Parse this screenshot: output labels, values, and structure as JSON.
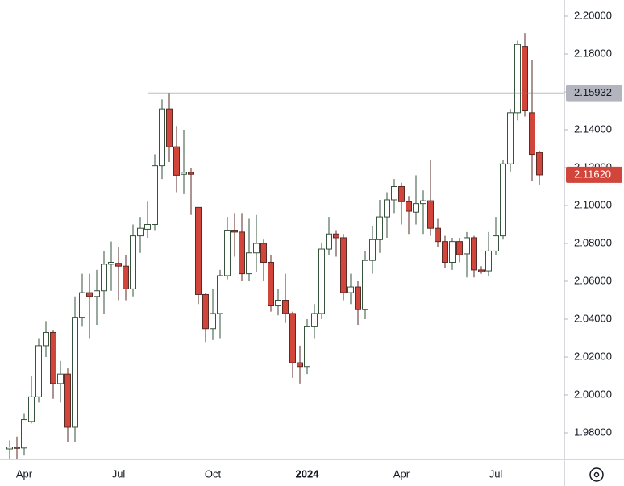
{
  "chart_data": {
    "type": "candlestick",
    "categories": [
      null,
      null,
      "Apr",
      null,
      null,
      null,
      null,
      null,
      null,
      null,
      null,
      null,
      null,
      null,
      null,
      "Jul",
      null,
      null,
      null,
      null,
      null,
      null,
      null,
      null,
      null,
      null,
      null,
      null,
      "Oct",
      null,
      null,
      null,
      null,
      null,
      null,
      null,
      null,
      null,
      null,
      null,
      null,
      "2024",
      null,
      null,
      null,
      null,
      null,
      null,
      null,
      null,
      null,
      null,
      null,
      null,
      "Apr",
      null,
      null,
      null,
      null,
      null,
      null,
      null,
      null,
      null,
      null,
      null,
      null,
      "Jul",
      null,
      null,
      null,
      null,
      null,
      null
    ],
    "open": [
      1.9715,
      1.9725,
      1.972,
      1.986,
      1.999,
      2.026,
      2.033,
      2.006,
      2.011,
      1.983,
      2.041,
      2.054,
      2.052,
      2.055,
      2.069,
      2.0695,
      2.068,
      2.056,
      2.084,
      2.0875,
      2.09,
      2.121,
      2.151,
      2.131,
      2.1165,
      2.1175,
      2.099,
      2.053,
      2.035,
      2.043,
      2.063,
      2.087,
      2.086,
      2.064,
      2.075,
      2.08,
      2.07,
      2.047,
      2.05,
      2.043,
      2.017,
      2.015,
      2.036,
      2.043,
      2.077,
      2.085,
      2.083,
      2.054,
      2.057,
      2.045,
      2.071,
      2.082,
      2.094,
      2.103,
      2.11,
      2.102,
      2.0965,
      2.101,
      2.1025,
      2.088,
      2.081,
      2.07,
      2.081,
      2.0745,
      2.083,
      2.066,
      2.0655,
      2.076,
      2.084,
      2.122,
      2.149,
      2.184,
      2.149,
      2.128
    ],
    "high": [
      1.976,
      1.978,
      1.99,
      2.01,
      2.03,
      2.039,
      2.034,
      2.018,
      2.014,
      2.052,
      2.064,
      2.064,
      2.066,
      2.076,
      2.081,
      2.078,
      2.074,
      2.09,
      2.094,
      2.102,
      2.127,
      2.156,
      2.159,
      2.142,
      2.14,
      2.12,
      2.099,
      2.054,
      2.056,
      2.066,
      2.094,
      2.096,
      2.096,
      2.093,
      2.095,
      2.082,
      2.074,
      2.056,
      2.064,
      2.044,
      2.026,
      2.04,
      2.048,
      2.08,
      2.094,
      2.087,
      2.085,
      2.064,
      2.06,
      2.076,
      2.089,
      2.103,
      2.107,
      2.114,
      2.112,
      2.105,
      2.116,
      2.108,
      2.124,
      2.093,
      2.084,
      2.083,
      2.083,
      2.086,
      2.084,
      2.068,
      2.086,
      2.094,
      2.124,
      2.151,
      2.187,
      2.191,
      2.177,
      2.129
    ],
    "low": [
      1.966,
      1.966,
      1.968,
      1.985,
      1.996,
      2.02,
      1.998,
      1.996,
      1.975,
      1.975,
      2.036,
      2.03,
      2.037,
      2.043,
      2.055,
      2.05,
      2.05,
      2.052,
      2.075,
      2.083,
      2.087,
      2.114,
      2.123,
      2.107,
      2.106,
      2.095,
      2.048,
      2.028,
      2.029,
      2.03,
      2.061,
      2.073,
      2.06,
      2.06,
      2.065,
      2.06,
      2.044,
      2.042,
      2.038,
      2.009,
      2.006,
      2.011,
      2.03,
      2.04,
      2.074,
      2.073,
      2.05,
      2.048,
      2.037,
      2.04,
      2.064,
      2.075,
      2.083,
      2.096,
      2.09,
      2.085,
      2.09,
      2.085,
      2.084,
      2.078,
      2.067,
      2.066,
      2.07,
      2.062,
      2.062,
      2.064,
      2.063,
      2.074,
      2.082,
      2.118,
      2.145,
      2.147,
      2.113,
      2.111
    ],
    "close": [
      1.9725,
      1.9718,
      1.987,
      1.999,
      2.026,
      2.033,
      2.006,
      2.011,
      1.983,
      2.041,
      2.054,
      2.052,
      2.055,
      2.069,
      2.07,
      2.068,
      2.056,
      2.084,
      2.088,
      2.09,
      2.121,
      2.151,
      2.131,
      2.116,
      2.1175,
      2.1165,
      2.053,
      2.035,
      2.043,
      2.063,
      2.087,
      2.086,
      2.064,
      2.075,
      2.08,
      2.07,
      2.047,
      2.05,
      2.043,
      2.017,
      2.015,
      2.036,
      2.043,
      2.077,
      2.085,
      2.083,
      2.054,
      2.057,
      2.045,
      2.071,
      2.082,
      2.094,
      2.103,
      2.11,
      2.102,
      2.097,
      2.101,
      2.1025,
      2.088,
      2.081,
      2.07,
      2.081,
      2.074,
      2.083,
      2.066,
      2.065,
      2.076,
      2.084,
      2.122,
      2.149,
      2.185,
      2.15,
      2.127,
      2.1162
    ],
    "up_color": "#ffffff",
    "down_color": "#d1453b",
    "ylim": [
      1.96596,
      2.20851
    ],
    "yticks": [
      {
        "value": 1.98,
        "label": "1.98000"
      },
      {
        "value": 2.0,
        "label": "2.00000"
      },
      {
        "value": 2.02,
        "label": "2.02000"
      },
      {
        "value": 2.04,
        "label": "2.04000"
      },
      {
        "value": 2.06,
        "label": "2.06000"
      },
      {
        "value": 2.08,
        "label": "2.08000"
      },
      {
        "value": 2.1,
        "label": "2.10000"
      },
      {
        "value": 2.12,
        "label": "2.12000"
      },
      {
        "value": 2.14,
        "label": "2.14000"
      },
      {
        "value": 2.16,
        "label": "2.16000"
      },
      {
        "value": 2.18,
        "label": "2.18000"
      },
      {
        "value": 2.2,
        "label": "2.20000"
      }
    ],
    "level": 2.15932,
    "last_price": {
      "value": 2.1162,
      "label": "2.11620"
    }
  }
}
